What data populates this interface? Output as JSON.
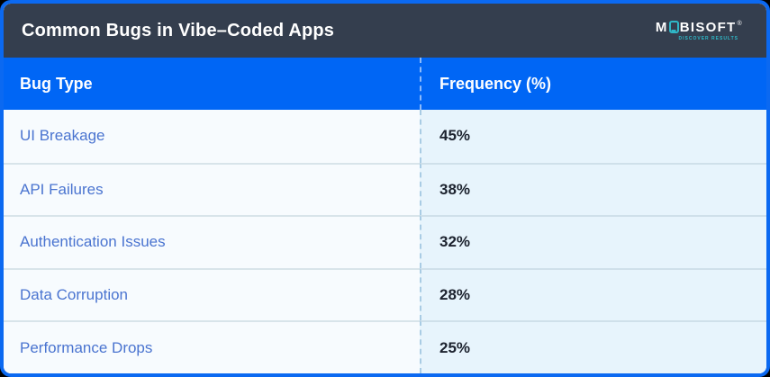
{
  "page": {
    "background": "#000000",
    "card_border_color": "#0b69f1"
  },
  "header": {
    "title": "Common Bugs in Vibe–Coded Apps",
    "background": "#343e4e",
    "logo": {
      "part1": "M",
      "phone_icon": "phone-shaped letter O",
      "part2": "BISOFT",
      "trademark": "®",
      "tagline": "DISCOVER RESULTS",
      "accent_color": "#2fb7c6"
    }
  },
  "table": {
    "header_background": "#0066f5",
    "columns": [
      "Bug Type",
      "Frequency (%)"
    ],
    "rows": [
      {
        "bug_type": "UI Breakage",
        "frequency": "45%"
      },
      {
        "bug_type": "API Failures",
        "frequency": "38%"
      },
      {
        "bug_type": "Authentication Issues",
        "frequency": "32%"
      },
      {
        "bug_type": "Data Corruption",
        "frequency": "28%"
      },
      {
        "bug_type": "Performance Drops",
        "frequency": "25%"
      }
    ],
    "bug_type_color": "#4a74d0",
    "value_color": "#1c222e"
  },
  "chart_data": {
    "type": "table",
    "title": "Common Bugs in Vibe–Coded Apps",
    "columns": [
      "Bug Type",
      "Frequency (%)"
    ],
    "categories": [
      "UI Breakage",
      "API Failures",
      "Authentication Issues",
      "Data Corruption",
      "Performance Drops"
    ],
    "values": [
      45,
      38,
      32,
      28,
      25
    ]
  }
}
